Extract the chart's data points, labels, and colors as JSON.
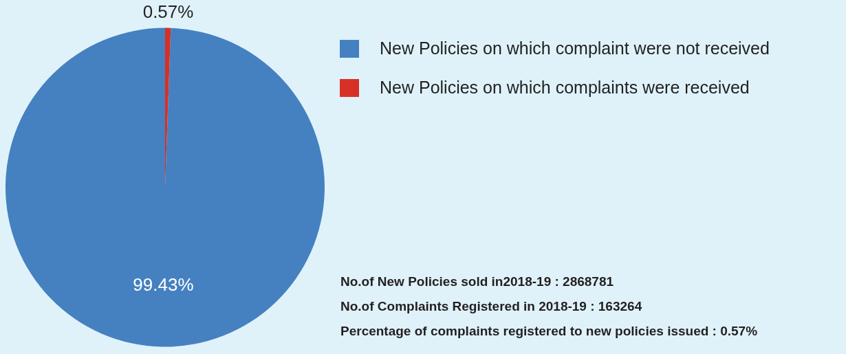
{
  "chart_data": {
    "type": "pie",
    "categories": [
      "New Policies on which complaint were not received",
      "New Policies on which complaints were received"
    ],
    "values": [
      99.43,
      0.57
    ],
    "colors": [
      "#4581c0",
      "#d63027"
    ],
    "value_labels": [
      "99.43%",
      "0.57%"
    ],
    "legend": "top right",
    "annotations": [
      "No.of New Policies sold in2018-19 : 2868781",
      "No.of Complaints Registered in 2018-19 : 163264",
      "Percentage of complaints registered to new policies issued : 0.57%"
    ]
  }
}
